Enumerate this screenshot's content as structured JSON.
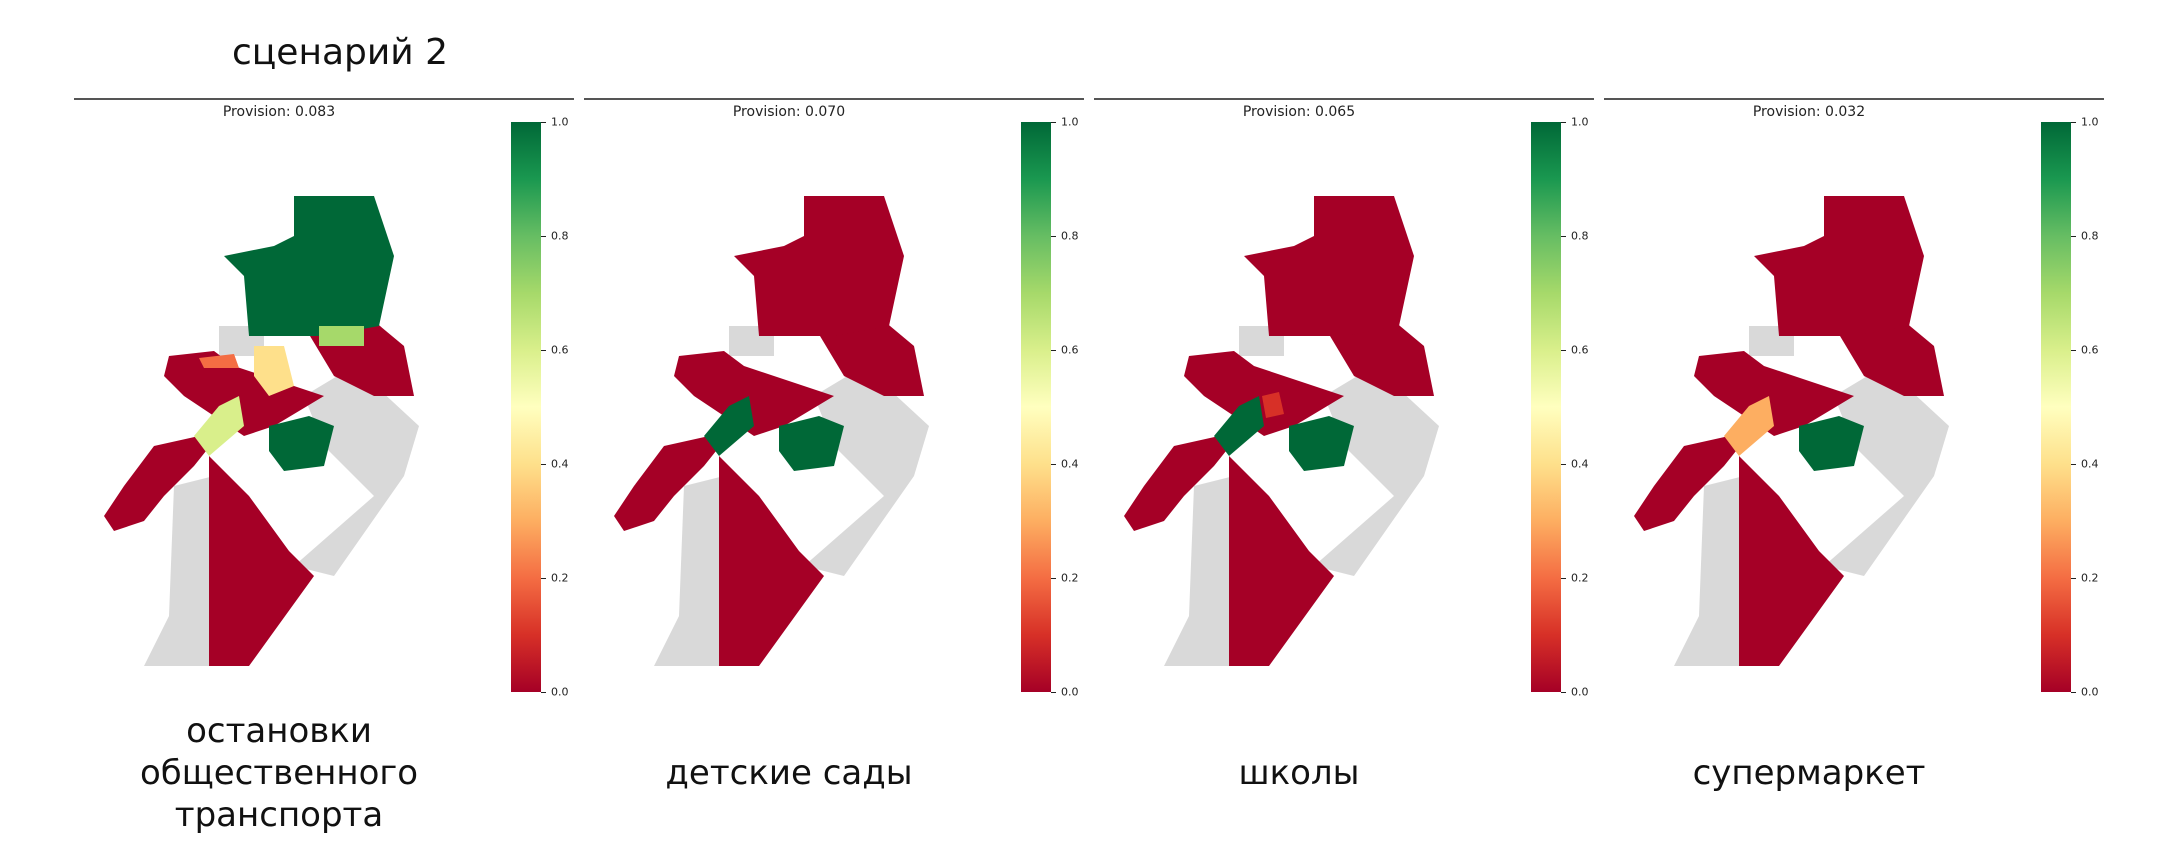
{
  "title": "сценарий 2",
  "colorbar_ticks": [
    "1.0",
    "0.8",
    "0.6",
    "0.4",
    "0.2",
    "0.0"
  ],
  "colors": {
    "high": "#006837",
    "low": "#a50026",
    "nodata": "#d9d9d9"
  },
  "panels": [
    {
      "provision_label": "Provision:",
      "provision_value": "0.083",
      "caption": "остановки общественного транспорта"
    },
    {
      "provision_label": "Provision:",
      "provision_value": "0.070",
      "caption": "детские сады"
    },
    {
      "provision_label": "Provision:",
      "provision_value": "0.065",
      "caption": "школы"
    },
    {
      "provision_label": "Provision:",
      "provision_value": "0.032",
      "caption": "супермаркет"
    }
  ]
}
